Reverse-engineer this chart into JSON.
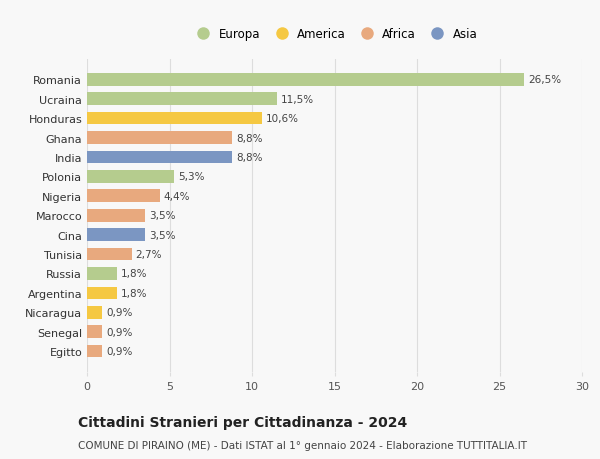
{
  "countries": [
    "Romania",
    "Ucraina",
    "Honduras",
    "Ghana",
    "India",
    "Polonia",
    "Nigeria",
    "Marocco",
    "Cina",
    "Tunisia",
    "Russia",
    "Argentina",
    "Nicaragua",
    "Senegal",
    "Egitto"
  ],
  "values": [
    26.5,
    11.5,
    10.6,
    8.8,
    8.8,
    5.3,
    4.4,
    3.5,
    3.5,
    2.7,
    1.8,
    1.8,
    0.9,
    0.9,
    0.9
  ],
  "labels": [
    "26,5%",
    "11,5%",
    "10,6%",
    "8,8%",
    "8,8%",
    "5,3%",
    "4,4%",
    "3,5%",
    "3,5%",
    "2,7%",
    "1,8%",
    "1,8%",
    "0,9%",
    "0,9%",
    "0,9%"
  ],
  "continents": [
    "Europa",
    "Europa",
    "America",
    "Africa",
    "Asia",
    "Europa",
    "Africa",
    "Africa",
    "Asia",
    "Africa",
    "Europa",
    "America",
    "America",
    "Africa",
    "Africa"
  ],
  "continent_colors": {
    "Europa": "#b5cc8e",
    "America": "#f5c842",
    "Africa": "#e8a97e",
    "Asia": "#7b96c2"
  },
  "legend_order": [
    "Europa",
    "America",
    "Africa",
    "Asia"
  ],
  "xlim": [
    0,
    30
  ],
  "xticks": [
    0,
    5,
    10,
    15,
    20,
    25,
    30
  ],
  "title": "Cittadini Stranieri per Cittadinanza - 2024",
  "subtitle": "COMUNE DI PIRAINO (ME) - Dati ISTAT al 1° gennaio 2024 - Elaborazione TUTTITALIA.IT",
  "background_color": "#f8f8f8",
  "grid_color": "#dddddd",
  "bar_height": 0.65,
  "label_fontsize": 7.5,
  "ytick_fontsize": 8,
  "xtick_fontsize": 8,
  "title_fontsize": 10,
  "subtitle_fontsize": 7.5
}
